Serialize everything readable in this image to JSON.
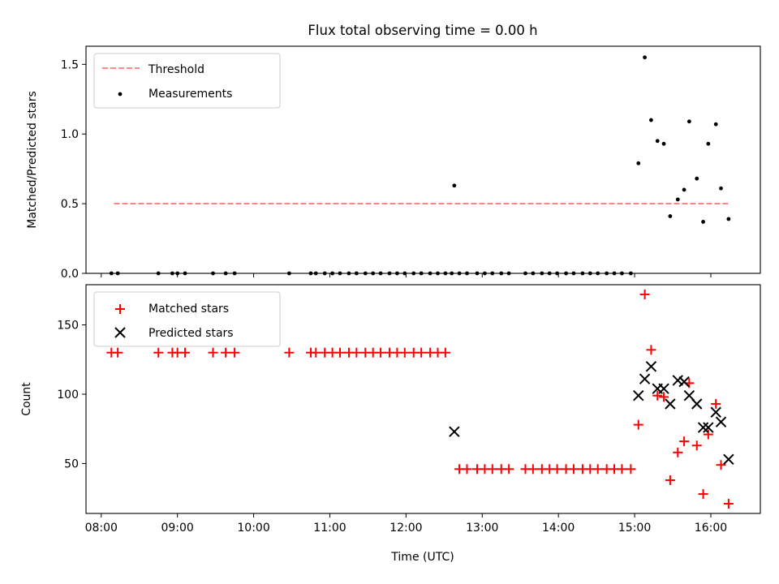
{
  "title": "Flux total observing time = 0.00 h",
  "xlabel": "Time (UTC)",
  "xticks": [
    "08:00",
    "09:00",
    "10:00",
    "11:00",
    "12:00",
    "13:00",
    "14:00",
    "15:00",
    "16:00"
  ],
  "chart_data": [
    {
      "type": "scatter",
      "ylabel": "Matched/Predicted stars",
      "xlim": [
        "07:48",
        "16:39"
      ],
      "ylim": [
        0,
        1.63
      ],
      "yticks": [
        "0.0",
        "0.5",
        "1.0",
        "1.5"
      ],
      "legend_position": "upper-left",
      "threshold": {
        "name": "Threshold",
        "y": 0.5,
        "x_range": [
          "08:10",
          "16:14"
        ],
        "color": "#ff6666",
        "style": "dashed"
      },
      "series": [
        {
          "name": "Measurements",
          "color": "#000000",
          "marker": "dot",
          "points": [
            [
              "08:08",
              0
            ],
            [
              "08:13",
              0
            ],
            [
              "08:45",
              0
            ],
            [
              "08:56",
              0
            ],
            [
              "09:00",
              0
            ],
            [
              "09:06",
              0
            ],
            [
              "09:28",
              0
            ],
            [
              "09:38",
              0
            ],
            [
              "09:45",
              0
            ],
            [
              "10:28",
              0
            ],
            [
              "10:45",
              0
            ],
            [
              "10:49",
              0
            ],
            [
              "10:56",
              0
            ],
            [
              "11:02",
              0
            ],
            [
              "11:08",
              0
            ],
            [
              "11:15",
              0
            ],
            [
              "11:21",
              0
            ],
            [
              "11:28",
              0
            ],
            [
              "11:34",
              0
            ],
            [
              "11:40",
              0
            ],
            [
              "11:47",
              0
            ],
            [
              "11:53",
              0
            ],
            [
              "11:59",
              0
            ],
            [
              "12:06",
              0
            ],
            [
              "12:12",
              0
            ],
            [
              "12:19",
              0
            ],
            [
              "12:25",
              0
            ],
            [
              "12:31",
              0
            ],
            [
              "12:36",
              0
            ],
            [
              "12:42",
              0
            ],
            [
              "12:48",
              0
            ],
            [
              "12:56",
              0
            ],
            [
              "13:02",
              0
            ],
            [
              "13:08",
              0
            ],
            [
              "13:15",
              0
            ],
            [
              "13:21",
              0
            ],
            [
              "13:34",
              0
            ],
            [
              "13:40",
              0
            ],
            [
              "13:47",
              0
            ],
            [
              "13:53",
              0
            ],
            [
              "13:59",
              0
            ],
            [
              "14:06",
              0
            ],
            [
              "14:12",
              0
            ],
            [
              "14:19",
              0
            ],
            [
              "14:25",
              0
            ],
            [
              "14:31",
              0
            ],
            [
              "14:38",
              0
            ],
            [
              "14:44",
              0
            ],
            [
              "14:50",
              0
            ],
            [
              "14:57",
              0
            ],
            [
              "12:38",
              0.63
            ],
            [
              "15:03",
              0.79
            ],
            [
              "15:08",
              1.55
            ],
            [
              "15:13",
              1.1
            ],
            [
              "15:18",
              0.95
            ],
            [
              "15:23",
              0.93
            ],
            [
              "15:28",
              0.41
            ],
            [
              "15:34",
              0.53
            ],
            [
              "15:39",
              0.6
            ],
            [
              "15:43",
              1.09
            ],
            [
              "15:49",
              0.68
            ],
            [
              "15:54",
              0.37
            ],
            [
              "15:58",
              0.93
            ],
            [
              "16:04",
              1.07
            ],
            [
              "16:08",
              0.61
            ],
            [
              "16:14",
              0.39
            ]
          ]
        }
      ]
    },
    {
      "type": "scatter",
      "ylabel": "Count",
      "xlim": [
        "07:48",
        "16:39"
      ],
      "ylim": [
        14,
        179
      ],
      "yticks": [
        "50",
        "100",
        "150"
      ],
      "legend_position": "upper-left",
      "series": [
        {
          "name": "Matched stars",
          "color": "#ff0000",
          "marker": "plus",
          "points": [
            [
              "08:08",
              130
            ],
            [
              "08:13",
              130
            ],
            [
              "08:45",
              130
            ],
            [
              "08:56",
              130
            ],
            [
              "09:00",
              130
            ],
            [
              "09:06",
              130
            ],
            [
              "09:28",
              130
            ],
            [
              "09:38",
              130
            ],
            [
              "09:45",
              130
            ],
            [
              "10:28",
              130
            ],
            [
              "10:45",
              130
            ],
            [
              "10:49",
              130
            ],
            [
              "10:56",
              130
            ],
            [
              "11:02",
              130
            ],
            [
              "11:08",
              130
            ],
            [
              "11:15",
              130
            ],
            [
              "11:21",
              130
            ],
            [
              "11:28",
              130
            ],
            [
              "11:34",
              130
            ],
            [
              "11:40",
              130
            ],
            [
              "11:47",
              130
            ],
            [
              "11:53",
              130
            ],
            [
              "11:59",
              130
            ],
            [
              "12:06",
              130
            ],
            [
              "12:12",
              130
            ],
            [
              "12:19",
              130
            ],
            [
              "12:25",
              130
            ],
            [
              "12:31",
              130
            ],
            [
              "12:42",
              46
            ],
            [
              "12:48",
              46
            ],
            [
              "12:56",
              46
            ],
            [
              "13:02",
              46
            ],
            [
              "13:08",
              46
            ],
            [
              "13:15",
              46
            ],
            [
              "13:21",
              46
            ],
            [
              "13:34",
              46
            ],
            [
              "13:40",
              46
            ],
            [
              "13:47",
              46
            ],
            [
              "13:53",
              46
            ],
            [
              "13:59",
              46
            ],
            [
              "14:06",
              46
            ],
            [
              "14:12",
              46
            ],
            [
              "14:19",
              46
            ],
            [
              "14:25",
              46
            ],
            [
              "14:31",
              46
            ],
            [
              "14:38",
              46
            ],
            [
              "14:44",
              46
            ],
            [
              "14:50",
              46
            ],
            [
              "14:57",
              46
            ],
            [
              "15:03",
              78
            ],
            [
              "15:08",
              172
            ],
            [
              "15:13",
              132
            ],
            [
              "15:18",
              99
            ],
            [
              "15:23",
              98
            ],
            [
              "15:28",
              38
            ],
            [
              "15:34",
              58
            ],
            [
              "15:39",
              66
            ],
            [
              "15:43",
              108
            ],
            [
              "15:49",
              63
            ],
            [
              "15:54",
              28
            ],
            [
              "15:58",
              71
            ],
            [
              "16:04",
              93
            ],
            [
              "16:08",
              49
            ],
            [
              "16:14",
              21
            ]
          ]
        },
        {
          "name": "Predicted stars",
          "color": "#000000",
          "marker": "x",
          "points": [
            [
              "12:38",
              73
            ],
            [
              "15:03",
              99
            ],
            [
              "15:08",
              111
            ],
            [
              "15:13",
              120
            ],
            [
              "15:18",
              104
            ],
            [
              "15:23",
              104
            ],
            [
              "15:28",
              93
            ],
            [
              "15:34",
              110
            ],
            [
              "15:39",
              109
            ],
            [
              "15:43",
              99
            ],
            [
              "15:49",
              93
            ],
            [
              "15:54",
              76
            ],
            [
              "15:58",
              76
            ],
            [
              "16:04",
              87
            ],
            [
              "16:08",
              80
            ],
            [
              "16:14",
              53
            ]
          ]
        }
      ]
    }
  ]
}
